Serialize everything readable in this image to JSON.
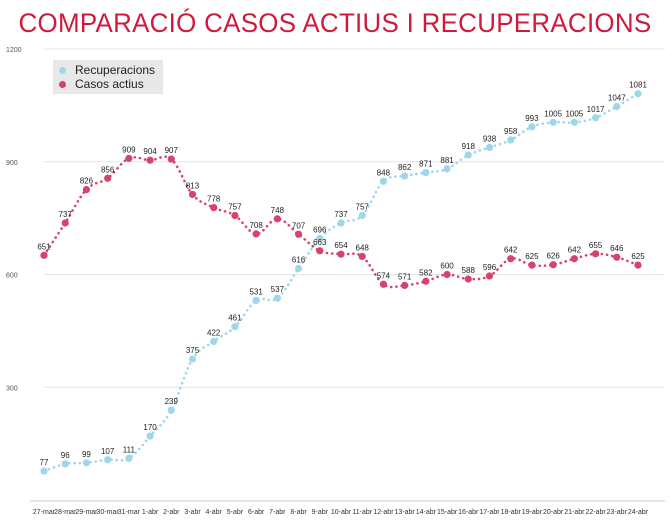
{
  "colors": {
    "title": "#d01a3c",
    "recuperacions": "#9ed6ec",
    "casos_actius": "#d6436b",
    "grid": "#e6e6e6",
    "axis_text": "#555555"
  },
  "chart_data": {
    "type": "line",
    "title": "COMPARACIÓ CASOS ACTIUS I RECUPERACIONS",
    "xlabel": "",
    "ylabel": "",
    "ylim": [
      0,
      1200
    ],
    "yticks": [
      300,
      600,
      900,
      1200
    ],
    "grid": true,
    "legend_position": "top-left",
    "categories": [
      "27-mar",
      "28-mar",
      "29-mar",
      "30-mar",
      "31-mar",
      "1-abr",
      "2-abr",
      "3-abr",
      "4-abr",
      "5-abr",
      "6-abr",
      "7-abr",
      "8-abr",
      "9-abr",
      "10-abr",
      "11-abr",
      "12-abr",
      "13-abr",
      "14-abr",
      "15-abr",
      "16-abr",
      "17-abr",
      "18-abr",
      "19-abr",
      "20-abr",
      "21-abr",
      "22-abr",
      "23-abr",
      "24-abr"
    ],
    "series": [
      {
        "name": "Recuperacions",
        "values": [
          77,
          96,
          99,
          107,
          111,
          170,
          239,
          375,
          422,
          461,
          531,
          537,
          616,
          696,
          737,
          757,
          848,
          862,
          871,
          881,
          918,
          938,
          958,
          993,
          1005,
          1005,
          1017,
          1047,
          1081
        ]
      },
      {
        "name": "Casos actius",
        "values": [
          651,
          737,
          826,
          856,
          909,
          904,
          907,
          813,
          778,
          757,
          708,
          748,
          707,
          663,
          654,
          648,
          574,
          571,
          582,
          600,
          588,
          596,
          642,
          625,
          626,
          642,
          655,
          646,
          625
        ]
      }
    ]
  }
}
